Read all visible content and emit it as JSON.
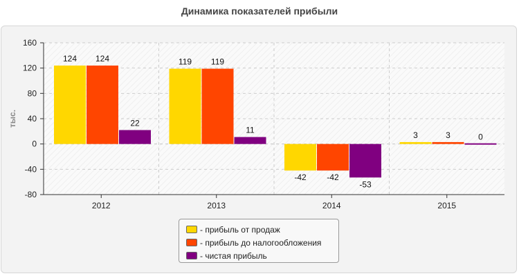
{
  "chart_data": {
    "type": "bar",
    "title": "Динамика показателей прибыли",
    "ylabel": "тыс.",
    "xlabel": "",
    "categories": [
      "2012",
      "2013",
      "2014",
      "2015"
    ],
    "ylim": [
      -80,
      160
    ],
    "yticks": [
      -80,
      -40,
      0,
      40,
      80,
      120,
      160
    ],
    "grid": true,
    "legend_position": "bottom",
    "series": [
      {
        "name": "- прибыль от продаж",
        "color": "#FFD700",
        "values": [
          124,
          119,
          -42,
          3
        ]
      },
      {
        "name": "- прибыль до налогообложения",
        "color": "#FF4500",
        "values": [
          124,
          119,
          -42,
          3
        ]
      },
      {
        "name": "- чистая прибыль",
        "color": "#800080",
        "values": [
          22,
          11,
          -53,
          0
        ]
      }
    ]
  }
}
